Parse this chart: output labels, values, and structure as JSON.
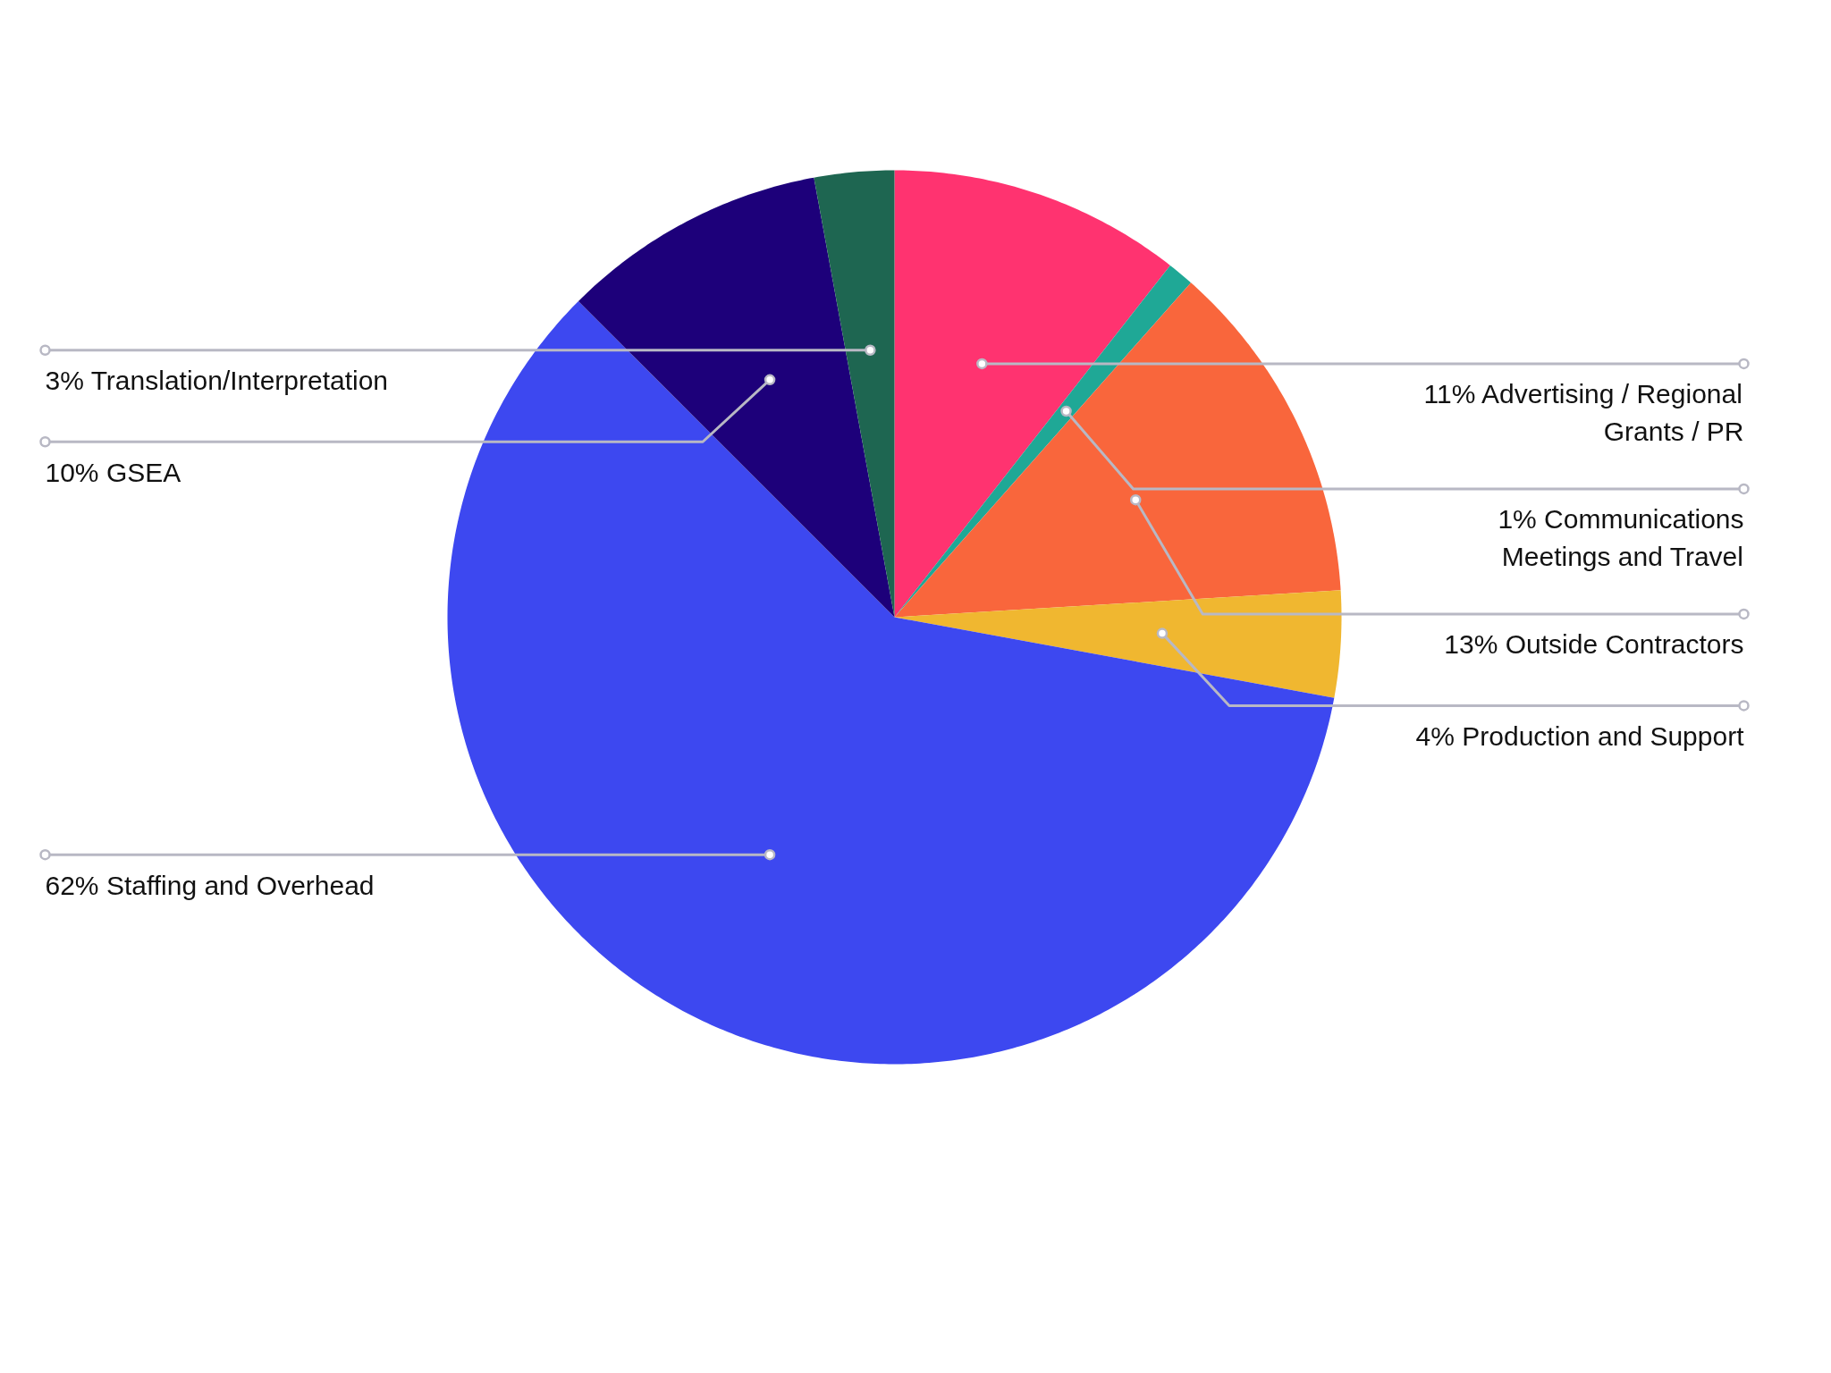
{
  "chart_data": {
    "type": "pie",
    "categories": [
      "Advertising / Regional\nGrants / PR",
      "Communications\nMeetings and Travel",
      "Outside Contractors",
      "Production and Support",
      "Staffing and Overhead",
      "GSEA",
      "Translation/Interpretation"
    ],
    "values": [
      11,
      1,
      13,
      4,
      62,
      10,
      3
    ],
    "value_labels": [
      "11%",
      "1%",
      "13%",
      "4%",
      "62%",
      "10%",
      "3%"
    ],
    "colors": [
      "#ff3370",
      "#1fa896",
      "#f9663c",
      "#f0b730",
      "#3d48f0",
      "#1d007a",
      "#1e6651"
    ]
  }
}
